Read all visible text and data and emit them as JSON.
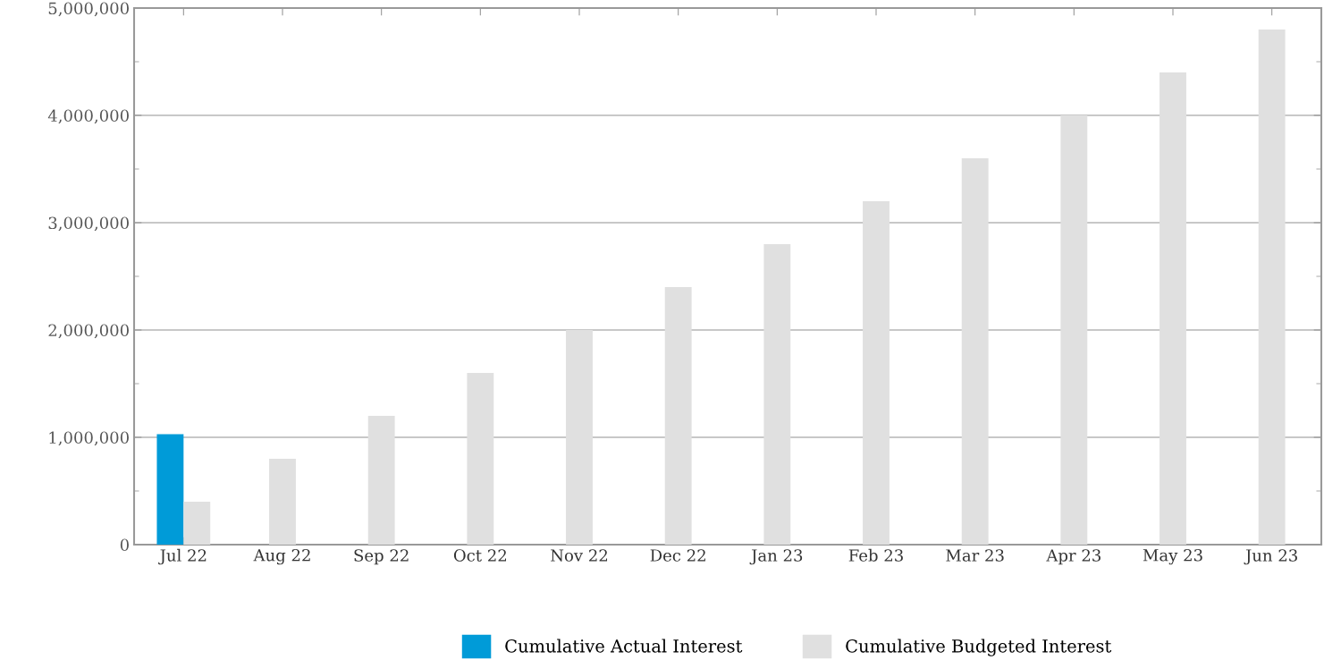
{
  "chart_data": {
    "type": "bar",
    "categories": [
      "Jul 22",
      "Aug 22",
      "Sep 22",
      "Oct 22",
      "Nov 22",
      "Dec 22",
      "Jan 23",
      "Feb 23",
      "Mar 23",
      "Apr 23",
      "May 23",
      "Jun 23"
    ],
    "series": [
      {
        "name": "Cumulative Actual Interest",
        "color": "#009bd8",
        "values": [
          1030000,
          null,
          null,
          null,
          null,
          null,
          null,
          null,
          null,
          null,
          null,
          null
        ]
      },
      {
        "name": "Cumulative Budgeted Interest",
        "color": "#e0e0e0",
        "values": [
          400000,
          800000,
          1200000,
          1600000,
          2000000,
          2400000,
          2800000,
          3200000,
          3600000,
          4000000,
          4400000,
          4800000
        ]
      }
    ],
    "ylim": [
      0,
      5000000
    ],
    "yticks": [
      {
        "value": 0,
        "label": "0"
      },
      {
        "value": 1000000,
        "label": "1,000,000"
      },
      {
        "value": 2000000,
        "label": "2,000,000"
      },
      {
        "value": 3000000,
        "label": "3,000,000"
      },
      {
        "value": 4000000,
        "label": "4,000,000"
      },
      {
        "value": 5000000,
        "label": "5,000,000"
      }
    ],
    "grid": "y",
    "legend": "bottom"
  }
}
